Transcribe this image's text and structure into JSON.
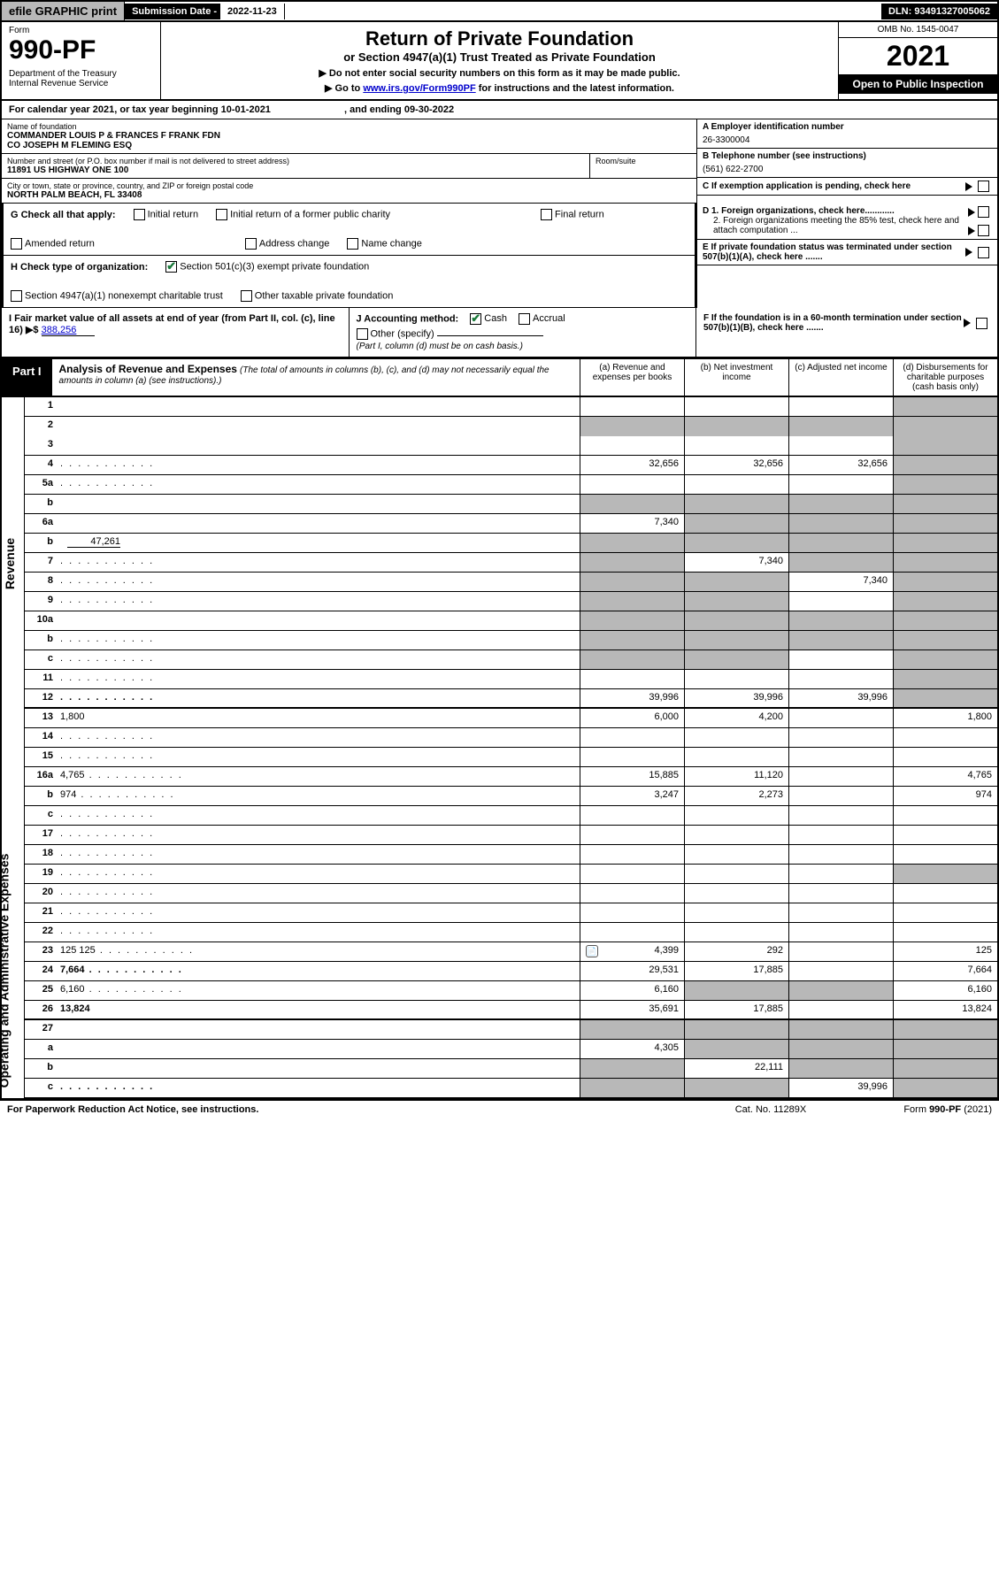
{
  "topbar": {
    "efile": "efile GRAPHIC print",
    "submission_label": "Submission Date - ",
    "submission_date": "2022-11-23",
    "dln": "DLN: 93491327005062"
  },
  "header": {
    "form_label": "Form",
    "form_num": "990-PF",
    "dept": "Department of the Treasury\nInternal Revenue Service",
    "title": "Return of Private Foundation",
    "subtitle": "or Section 4947(a)(1) Trust Treated as Private Foundation",
    "note1": "▶ Do not enter social security numbers on this form as it may be made public.",
    "note2_pre": "▶ Go to ",
    "note2_link": "www.irs.gov/Form990PF",
    "note2_post": " for instructions and the latest information.",
    "omb": "OMB No. 1545-0047",
    "year": "2021",
    "inspection": "Open to Public Inspection"
  },
  "calyear": {
    "text_pre": "For calendar year 2021, or tax year beginning ",
    "begin": "10-01-2021",
    "text_mid": " , and ending ",
    "end": "09-30-2022"
  },
  "info": {
    "name_label": "Name of foundation",
    "name": "COMMANDER LOUIS P & FRANCES F FRANK FDN\nCO JOSEPH M FLEMING ESQ",
    "addr_label": "Number and street (or P.O. box number if mail is not delivered to street address)",
    "addr": "11891 US HIGHWAY ONE 100",
    "room_label": "Room/suite",
    "city_label": "City or town, state or province, country, and ZIP or foreign postal code",
    "city": "NORTH PALM BEACH, FL  33408",
    "ein_label": "A Employer identification number",
    "ein": "26-3300004",
    "phone_label": "B Telephone number (see instructions)",
    "phone": "(561) 622-2700",
    "c_label": "C If exemption application is pending, check here",
    "d1": "D 1. Foreign organizations, check here............",
    "d2": "2. Foreign organizations meeting the 85% test, check here and attach computation ...",
    "e_label": "E If private foundation status was terminated under section 507(b)(1)(A), check here .......",
    "f_label": "F If the foundation is in a 60-month termination under section 507(b)(1)(B), check here ......."
  },
  "checks": {
    "g_label": "G Check all that apply:",
    "g_opts": [
      "Initial return",
      "Initial return of a former public charity",
      "Final return",
      "Amended return",
      "Address change",
      "Name change"
    ],
    "h_label": "H Check type of organization:",
    "h1": "Section 501(c)(3) exempt private foundation",
    "h2": "Section 4947(a)(1) nonexempt charitable trust",
    "h3": "Other taxable private foundation",
    "i_label": "I Fair market value of all assets at end of year (from Part II, col. (c), line 16) ▶$",
    "i_val": "388,256",
    "j_label": "J Accounting method:",
    "j_cash": "Cash",
    "j_accrual": "Accrual",
    "j_other": "Other (specify)",
    "j_note": "(Part I, column (d) must be on cash basis.)"
  },
  "part1": {
    "label": "Part I",
    "title": "Analysis of Revenue and Expenses",
    "subtitle": "(The total of amounts in columns (b), (c), and (d) may not necessarily equal the amounts in column (a) (see instructions).)",
    "cols": {
      "a": "(a) Revenue and expenses per books",
      "b": "(b) Net investment income",
      "c": "(c) Adjusted net income",
      "d": "(d) Disbursements for charitable purposes (cash basis only)"
    }
  },
  "sidelabels": {
    "revenue": "Revenue",
    "expenses": "Operating and Administrative Expenses"
  },
  "rows": [
    {
      "n": "1",
      "d": "",
      "a": "",
      "b": "",
      "c": "",
      "shade_d": true
    },
    {
      "n": "2",
      "d": "",
      "a": "",
      "b": "",
      "c": "",
      "shade_all": true,
      "noborder": true,
      "bold_parts": true
    },
    {
      "n": "3",
      "d": "",
      "a": "",
      "b": "",
      "c": "",
      "shade_d": true
    },
    {
      "n": "4",
      "d": "",
      "a": "32,656",
      "b": "32,656",
      "c": "32,656",
      "shade_d": true,
      "dots": true
    },
    {
      "n": "5a",
      "d": "",
      "a": "",
      "b": "",
      "c": "",
      "shade_d": true,
      "dots": true
    },
    {
      "n": "b",
      "d": "",
      "a": "",
      "b": "",
      "c": "",
      "shade_all": true
    },
    {
      "n": "6a",
      "d": "",
      "a": "7,340",
      "b": "",
      "c": "",
      "shade_bcd": true
    },
    {
      "n": "b",
      "d": "",
      "inline_val": "47,261",
      "a": "",
      "b": "",
      "c": "",
      "shade_all": true
    },
    {
      "n": "7",
      "d": "",
      "a": "",
      "b": "7,340",
      "c": "",
      "shade_a": true,
      "shade_cd": true,
      "dots": true
    },
    {
      "n": "8",
      "d": "",
      "a": "",
      "b": "",
      "c": "7,340",
      "shade_ab": true,
      "shade_d": true,
      "dots": true
    },
    {
      "n": "9",
      "d": "",
      "a": "",
      "b": "",
      "c": "",
      "shade_ab": true,
      "shade_d": true,
      "dots": true
    },
    {
      "n": "10a",
      "d": "",
      "a": "",
      "b": "",
      "c": "",
      "shade_all": true
    },
    {
      "n": "b",
      "d": "",
      "a": "",
      "b": "",
      "c": "",
      "shade_all": true,
      "dots": true
    },
    {
      "n": "c",
      "d": "",
      "a": "",
      "b": "",
      "c": "",
      "shade_ab": true,
      "shade_d": true,
      "dots": true
    },
    {
      "n": "11",
      "d": "",
      "a": "",
      "b": "",
      "c": "",
      "shade_d": true,
      "dots": true
    },
    {
      "n": "12",
      "d": "",
      "a": "39,996",
      "b": "39,996",
      "c": "39,996",
      "bold": true,
      "shade_d": true,
      "dots": true
    },
    {
      "n": "13",
      "d": "1,800",
      "a": "6,000",
      "b": "4,200",
      "c": ""
    },
    {
      "n": "14",
      "d": "",
      "a": "",
      "b": "",
      "c": "",
      "dots": true
    },
    {
      "n": "15",
      "d": "",
      "a": "",
      "b": "",
      "c": "",
      "dots": true
    },
    {
      "n": "16a",
      "d": "4,765",
      "a": "15,885",
      "b": "11,120",
      "c": "",
      "dots": true
    },
    {
      "n": "b",
      "d": "974",
      "a": "3,247",
      "b": "2,273",
      "c": "",
      "dots": true
    },
    {
      "n": "c",
      "d": "",
      "a": "",
      "b": "",
      "c": "",
      "dots": true
    },
    {
      "n": "17",
      "d": "",
      "a": "",
      "b": "",
      "c": "",
      "dots": true
    },
    {
      "n": "18",
      "d": "",
      "a": "",
      "b": "",
      "c": "",
      "dots": true
    },
    {
      "n": "19",
      "d": "",
      "a": "",
      "b": "",
      "c": "",
      "shade_d": true,
      "dots": true
    },
    {
      "n": "20",
      "d": "",
      "a": "",
      "b": "",
      "c": "",
      "dots": true
    },
    {
      "n": "21",
      "d": "",
      "a": "",
      "b": "",
      "c": "",
      "dots": true
    },
    {
      "n": "22",
      "d": "",
      "a": "",
      "b": "",
      "c": "",
      "dots": true
    },
    {
      "n": "23",
      "d": "125",
      "a": "4,399",
      "b": "292",
      "c": "",
      "dots": true,
      "icon": true
    },
    {
      "n": "24",
      "d": "7,664",
      "a": "29,531",
      "b": "17,885",
      "c": "",
      "bold": true,
      "dots": true
    },
    {
      "n": "25",
      "d": "6,160",
      "a": "6,160",
      "b": "",
      "c": "",
      "shade_bc": true,
      "dots": true
    },
    {
      "n": "26",
      "d": "13,824",
      "a": "35,691",
      "b": "17,885",
      "c": "",
      "bold": true
    },
    {
      "n": "27",
      "d": "",
      "a": "",
      "b": "",
      "c": "",
      "shade_all": true
    },
    {
      "n": "a",
      "d": "",
      "a": "4,305",
      "b": "",
      "c": "",
      "bold": true,
      "shade_bcd": true
    },
    {
      "n": "b",
      "d": "",
      "a": "",
      "b": "22,111",
      "c": "",
      "bold": true,
      "shade_a": true,
      "shade_cd": true
    },
    {
      "n": "c",
      "d": "",
      "a": "",
      "b": "",
      "c": "39,996",
      "bold": true,
      "shade_ab": true,
      "shade_d": true,
      "dots": true
    }
  ],
  "footer": {
    "left": "For Paperwork Reduction Act Notice, see instructions.",
    "center": "Cat. No. 11289X",
    "right": "Form 990-PF (2021)"
  }
}
